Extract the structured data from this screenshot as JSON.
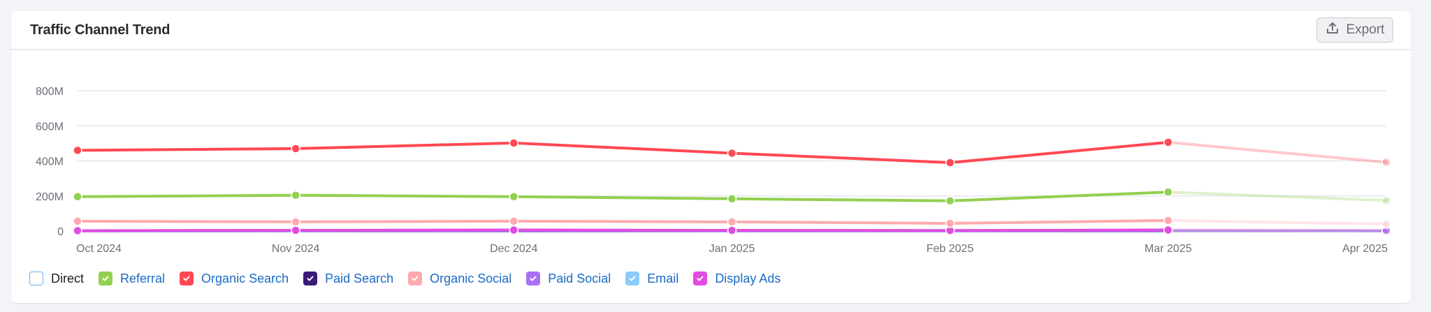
{
  "header": {
    "title": "Traffic Channel Trend",
    "export_label": "Export",
    "export_icon": "upload-icon"
  },
  "colors": {
    "direct": "#6aaef0",
    "referral": "#92d050",
    "organic_search": "#ff4853",
    "paid_search": "#3b1a78",
    "organic_social": "#ffaaaf",
    "paid_social": "#a970f5",
    "email": "#8ccbfb",
    "display_ads": "#e24ce0",
    "gridline": "#e6e7ec",
    "axis_text": "#6c6e79"
  },
  "legend": [
    {
      "key": "direct",
      "label": "Direct",
      "checked": false,
      "color": "#6aaef0"
    },
    {
      "key": "referral",
      "label": "Referral",
      "checked": true,
      "color": "#92d050"
    },
    {
      "key": "organic_search",
      "label": "Organic Search",
      "checked": true,
      "color": "#ff4853"
    },
    {
      "key": "paid_search",
      "label": "Paid Search",
      "checked": true,
      "color": "#3b1a78"
    },
    {
      "key": "organic_social",
      "label": "Organic Social",
      "checked": true,
      "color": "#ffaaaf"
    },
    {
      "key": "paid_social",
      "label": "Paid Social",
      "checked": true,
      "color": "#a970f5"
    },
    {
      "key": "email",
      "label": "Email",
      "checked": true,
      "color": "#8ccbfb"
    },
    {
      "key": "display_ads",
      "label": "Display Ads",
      "checked": true,
      "color": "#e24ce0"
    }
  ],
  "chart_data": {
    "type": "line",
    "title": "Traffic Channel Trend",
    "xlabel": "",
    "ylabel": "",
    "x": [
      "Oct 2024",
      "Nov 2024",
      "Dec 2024",
      "Jan 2025",
      "Feb 2025",
      "Mar 2025",
      "Apr 2025"
    ],
    "yticks": [
      "0",
      "200M",
      "400M",
      "600M",
      "800M"
    ],
    "ylim": [
      0,
      800000000
    ],
    "grid": true,
    "legend_position": "bottom",
    "incomplete_last_period": true,
    "series": [
      {
        "name": "Organic Search",
        "color": "#ff4853",
        "values": [
          460000000,
          470000000,
          502000000,
          444000000,
          390000000,
          506000000,
          392000000
        ]
      },
      {
        "name": "Referral",
        "color": "#92d050",
        "values": [
          196000000,
          204000000,
          196000000,
          184000000,
          172000000,
          222000000,
          174000000
        ]
      },
      {
        "name": "Organic Social",
        "color": "#ffaaaf",
        "values": [
          56000000,
          52000000,
          56000000,
          52000000,
          44000000,
          60000000,
          40000000
        ]
      },
      {
        "name": "Display Ads",
        "color": "#e24ce0",
        "values": [
          2000000,
          4000000,
          6000000,
          4000000,
          3000000,
          6000000,
          3000000
        ]
      },
      {
        "name": "Paid Social",
        "color": "#a970f5",
        "values": [
          1000000,
          2000000,
          3000000,
          2000000,
          2000000,
          3000000,
          2000000
        ]
      },
      {
        "name": "Email",
        "color": "#8ccbfb",
        "values": [
          0,
          0,
          1000000,
          0,
          0,
          1000000,
          0
        ]
      },
      {
        "name": "Paid Search",
        "color": "#3b1a78",
        "values": [
          0,
          0,
          0,
          0,
          0,
          0,
          0
        ]
      }
    ]
  }
}
